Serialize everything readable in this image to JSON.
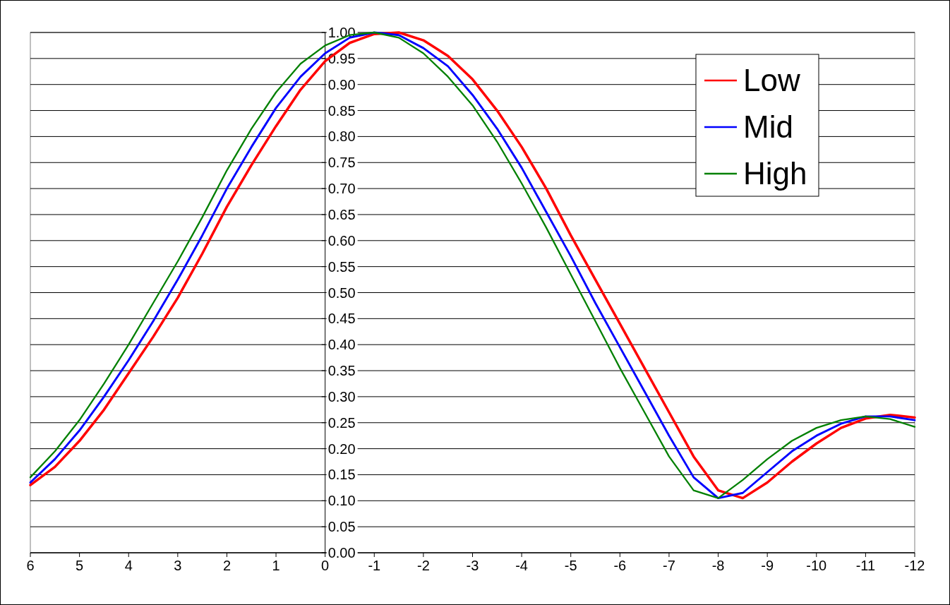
{
  "chart_data": {
    "type": "line",
    "xlim": [
      6,
      -12
    ],
    "xticks": [
      6,
      5,
      4,
      3,
      2,
      1,
      0,
      -1,
      -2,
      -3,
      -4,
      -5,
      -6,
      -7,
      -8,
      -9,
      -10,
      -11,
      -12
    ],
    "ylim": [
      0,
      1
    ],
    "yticks": [
      {
        "value": 0,
        "label": "0.00"
      },
      {
        "value": 0.05,
        "label": "0.05"
      },
      {
        "value": 0.1,
        "label": "0.10"
      },
      {
        "value": 0.15,
        "label": "0.15"
      },
      {
        "value": 0.2,
        "label": "0.20"
      },
      {
        "value": 0.25,
        "label": "0.25"
      },
      {
        "value": 0.3,
        "label": "0.30"
      },
      {
        "value": 0.35,
        "label": "0.35"
      },
      {
        "value": 0.4,
        "label": "0.40"
      },
      {
        "value": 0.45,
        "label": "0.45"
      },
      {
        "value": 0.5,
        "label": "0.50"
      },
      {
        "value": 0.55,
        "label": "0.55"
      },
      {
        "value": 0.6,
        "label": "0.60"
      },
      {
        "value": 0.65,
        "label": "0.65"
      },
      {
        "value": 0.7,
        "label": "0.70"
      },
      {
        "value": 0.75,
        "label": "0.75"
      },
      {
        "value": 0.8,
        "label": "0.80"
      },
      {
        "value": 0.85,
        "label": "0.85"
      },
      {
        "value": 0.9,
        "label": "0.90"
      },
      {
        "value": 0.95,
        "label": "0.95"
      },
      {
        "value": 1,
        "label": "1.00"
      }
    ],
    "x": [
      6,
      5.5,
      5,
      4.5,
      4,
      3.5,
      3,
      2.5,
      2,
      1.5,
      1,
      0.5,
      0,
      -0.5,
      -1,
      -1.5,
      -2,
      -2.5,
      -3,
      -3.5,
      -4,
      -4.5,
      -5,
      -5.5,
      -6,
      -6.5,
      -7,
      -7.5,
      -8,
      -8.5,
      -9,
      -9.5,
      -10,
      -10.5,
      -11,
      -11.5,
      -12
    ],
    "grid": "y",
    "legend": "top right",
    "marker": "none",
    "line_style": "solid",
    "series": [
      {
        "name": "Low",
        "color": "#ff0000",
        "values": [
          0.13,
          0.165,
          0.215,
          0.275,
          0.345,
          0.415,
          0.49,
          0.575,
          0.665,
          0.745,
          0.82,
          0.89,
          0.945,
          0.98,
          0.997,
          1.0,
          0.985,
          0.955,
          0.91,
          0.85,
          0.78,
          0.7,
          0.61,
          0.525,
          0.44,
          0.355,
          0.27,
          0.185,
          0.12,
          0.105,
          0.135,
          0.175,
          0.21,
          0.24,
          0.258,
          0.265,
          0.26
        ]
      },
      {
        "name": "Mid",
        "color": "#0000ff",
        "values": [
          0.135,
          0.18,
          0.235,
          0.3,
          0.37,
          0.445,
          0.525,
          0.61,
          0.7,
          0.78,
          0.855,
          0.915,
          0.96,
          0.99,
          1.0,
          0.995,
          0.97,
          0.935,
          0.88,
          0.815,
          0.74,
          0.655,
          0.57,
          0.48,
          0.395,
          0.31,
          0.225,
          0.145,
          0.105,
          0.115,
          0.155,
          0.195,
          0.225,
          0.248,
          0.262,
          0.262,
          0.255
        ]
      },
      {
        "name": "High",
        "color": "#008000",
        "values": [
          0.145,
          0.195,
          0.255,
          0.325,
          0.4,
          0.48,
          0.56,
          0.645,
          0.735,
          0.815,
          0.885,
          0.94,
          0.975,
          0.995,
          1.0,
          0.99,
          0.96,
          0.915,
          0.86,
          0.79,
          0.71,
          0.625,
          0.535,
          0.445,
          0.355,
          0.27,
          0.185,
          0.12,
          0.105,
          0.14,
          0.18,
          0.215,
          0.24,
          0.255,
          0.262,
          0.257,
          0.242
        ]
      }
    ]
  }
}
